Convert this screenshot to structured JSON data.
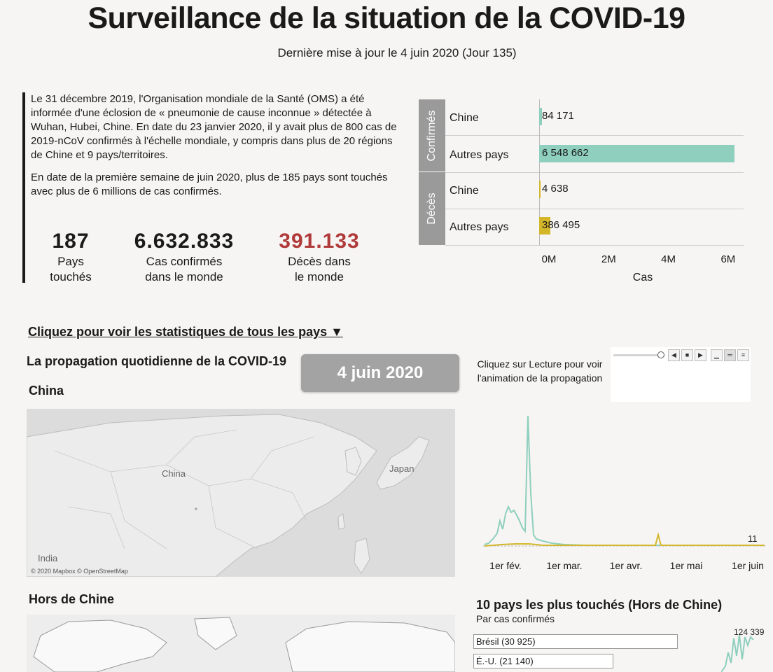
{
  "header": {
    "title": "Surveillance de la situation de la COVID-19",
    "subtitle": "Dernière mise à jour le 4 juin 2020 (Jour 135)"
  },
  "intro": {
    "paragraph1": "Le 31 décembre 2019, l'Organisation mondiale de la Santé (OMS) a été informée d'une éclosion de « pneumonie de cause inconnue » détectée à Wuhan, Hubei, Chine. En date du 23 janvier 2020, il y avait plus de 800 cas de 2019-nCoV confirmés à l'échelle mondiale, y compris dans plus de 20 régions de Chine et 9 pays/territoires.",
    "paragraph2": "En date de la première semaine de juin 2020, plus de 185 pays sont touchés avec plus de 6 millions de cas confirmés."
  },
  "stats": [
    {
      "value": "187",
      "label_line1": "Pays",
      "label_line2": "touchés"
    },
    {
      "value": "6.632.833",
      "label_line1": "Cas confirmés",
      "label_line2": "dans le monde"
    },
    {
      "value": "391.133",
      "label_line1": "Décès dans",
      "label_line2": "le monde"
    }
  ],
  "colors": {
    "confirmed": "#8fcfbe",
    "deaths": "#d4b62b",
    "deaths_text": "#b03a3a"
  },
  "chart_data": [
    {
      "type": "bar",
      "orientation": "horizontal",
      "groups": [
        "Confirmés",
        "Décès"
      ],
      "categories": [
        "Chine",
        "Autres pays",
        "Chine",
        "Autres pays"
      ],
      "values": [
        84171,
        6548662,
        4638,
        386495
      ],
      "value_labels": [
        "84 171",
        "6 548 662",
        "4 638",
        "386 495"
      ],
      "xlabel": "Cas",
      "xticks": [
        "0M",
        "2M",
        "4M",
        "6M"
      ],
      "xlim": [
        0,
        6800000
      ]
    },
    {
      "type": "line",
      "xticks": [
        "1er fév.",
        "1er mar.",
        "1er avr.",
        "1er mai",
        "1er juin"
      ],
      "last_value_label": "11",
      "series_colors": [
        "#8fcfbe",
        "#d4b62b"
      ]
    }
  ],
  "controls": {
    "link_text": "Cliquez pour voir les statistiques de tous les pays ▼",
    "spread_title": "La propagation quotidienne de la COVID-19",
    "current_date": "4 juin 2020",
    "play_hint": "Cliquez sur Lecture pour voir l'animation de la propagation",
    "player_icons": [
      "slider-knob",
      "step-back-icon",
      "stop-icon",
      "step-forward-icon",
      "speed-slow-icon",
      "speed-medium-icon",
      "speed-fast-icon"
    ]
  },
  "maps": {
    "china_title": "China",
    "china_labels": {
      "china": "China",
      "japan": "Japan",
      "india": "India"
    },
    "attribution": "© 2020 Mapbox © OpenStreetMap",
    "outside_title": "Hors de Chine"
  },
  "top10": {
    "title": "10 pays les plus touchés (Hors de Chine)",
    "subtitle": "Par cas confirmés",
    "items": [
      {
        "label": "Brésil (30 925)",
        "value": 30925
      },
      {
        "label": "É.-U. (21 140)",
        "value": 21140
      }
    ],
    "mini_value_label": "124 339"
  }
}
